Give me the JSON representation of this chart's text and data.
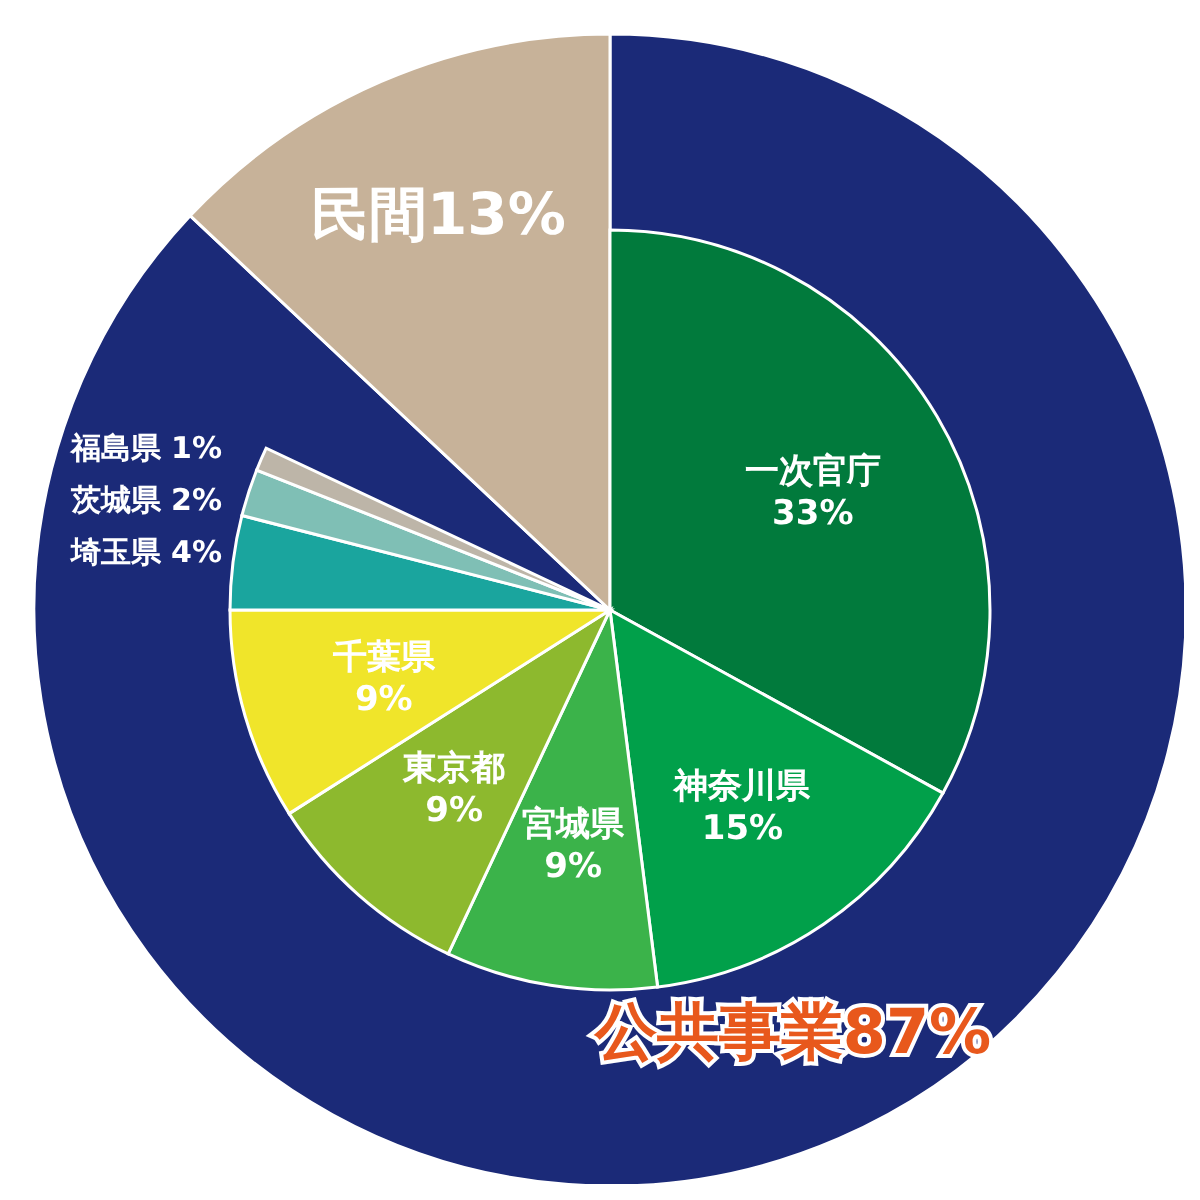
{
  "chart_data": [
    {
      "type": "pie",
      "categories": [
        "公共事業",
        "民間"
      ],
      "values": [
        87,
        13
      ],
      "colors": [
        "#1b2a78",
        "#c7b299"
      ],
      "value_labels": [
        "87%",
        "13%"
      ]
    },
    {
      "type": "pie",
      "categories": [
        "一次官庁",
        "神奈川県",
        "宮城県",
        "東京都",
        "千葉県",
        "埼玉県",
        "茨城県",
        "福島県"
      ],
      "values": [
        33,
        15,
        9,
        9,
        9,
        4,
        2,
        1
      ],
      "colors": [
        "#017a3c",
        "#01a04a",
        "#3bb34a",
        "#8db92e",
        "#f0e52a",
        "#1aa59e",
        "#7fbfb5",
        "#bdb5a8"
      ],
      "value_labels": [
        "33%",
        "15%",
        "9%",
        "9%",
        "9%",
        "4%",
        "2%",
        "1%"
      ]
    }
  ]
}
